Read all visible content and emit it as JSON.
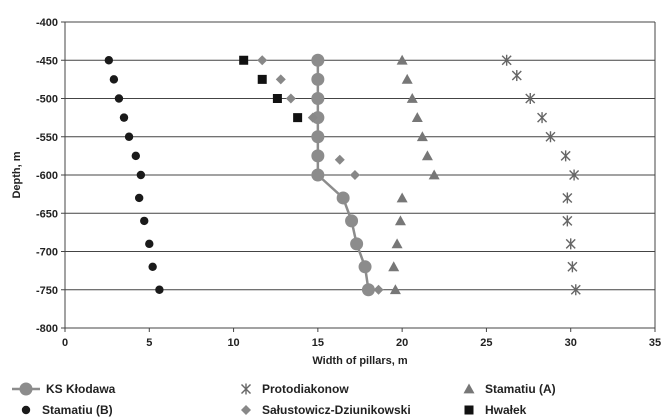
{
  "chart_data": {
    "type": "scatter",
    "xlabel": "Width of pillars, m",
    "ylabel": "Depth, m",
    "xlim": [
      0,
      35
    ],
    "ylim": [
      -800,
      -400
    ],
    "x_ticks": [
      "0",
      "5",
      "10",
      "15",
      "20",
      "25",
      "30",
      "35"
    ],
    "y_ticks": [
      "-400",
      "-450",
      "-500",
      "-550",
      "-600",
      "-650",
      "-700",
      "-750",
      "-800"
    ],
    "grid": "horizontal",
    "legend_position": "bottom",
    "series": [
      {
        "name": "KS Kłodawa",
        "marker": "circle-line",
        "color": "#8c8c8c",
        "points": [
          [
            15.0,
            -450
          ],
          [
            15.0,
            -475
          ],
          [
            15.0,
            -500
          ],
          [
            15.0,
            -525
          ],
          [
            15.0,
            -550
          ],
          [
            15.0,
            -575
          ],
          [
            15.0,
            -600
          ],
          [
            16.5,
            -630
          ],
          [
            17.0,
            -660
          ],
          [
            17.3,
            -690
          ],
          [
            17.8,
            -720
          ],
          [
            18.0,
            -750
          ]
        ]
      },
      {
        "name": "Protodiakonow",
        "marker": "asterisk",
        "color": "#666666",
        "points": [
          [
            26.2,
            -450
          ],
          [
            26.8,
            -470
          ],
          [
            27.6,
            -500
          ],
          [
            28.3,
            -525
          ],
          [
            28.8,
            -550
          ],
          [
            29.7,
            -575
          ],
          [
            30.2,
            -600
          ],
          [
            29.8,
            -630
          ],
          [
            29.8,
            -660
          ],
          [
            30.0,
            -690
          ],
          [
            30.1,
            -720
          ],
          [
            30.3,
            -750
          ]
        ]
      },
      {
        "name": "Stamatiu (A)",
        "marker": "triangle",
        "color": "#777777",
        "points": [
          [
            20.0,
            -450
          ],
          [
            20.3,
            -475
          ],
          [
            20.6,
            -500
          ],
          [
            20.9,
            -525
          ],
          [
            21.2,
            -550
          ],
          [
            21.5,
            -575
          ],
          [
            21.9,
            -600
          ],
          [
            20.0,
            -630
          ],
          [
            19.9,
            -660
          ],
          [
            19.7,
            -690
          ],
          [
            19.5,
            -720
          ],
          [
            19.6,
            -750
          ]
        ]
      },
      {
        "name": "Stamatiu (B)",
        "marker": "dot",
        "color": "#1a1a1a",
        "points": [
          [
            2.6,
            -450
          ],
          [
            2.9,
            -475
          ],
          [
            3.2,
            -500
          ],
          [
            3.5,
            -525
          ],
          [
            3.8,
            -550
          ],
          [
            4.2,
            -575
          ],
          [
            4.5,
            -600
          ],
          [
            4.4,
            -630
          ],
          [
            4.7,
            -660
          ],
          [
            5.0,
            -690
          ],
          [
            5.2,
            -720
          ],
          [
            5.6,
            -750
          ]
        ]
      },
      {
        "name": "Sałustowicz-Dziunikowski",
        "marker": "diamond",
        "color": "#888888",
        "points": [
          [
            11.7,
            -450
          ],
          [
            12.8,
            -475
          ],
          [
            13.4,
            -500
          ],
          [
            14.7,
            -525
          ],
          [
            16.3,
            -580
          ],
          [
            17.2,
            -600
          ],
          [
            18.6,
            -750
          ]
        ]
      },
      {
        "name": "Hwałek",
        "marker": "square",
        "color": "#111111",
        "points": [
          [
            10.6,
            -450
          ],
          [
            11.7,
            -475
          ],
          [
            12.6,
            -500
          ],
          [
            13.8,
            -525
          ]
        ]
      }
    ]
  }
}
